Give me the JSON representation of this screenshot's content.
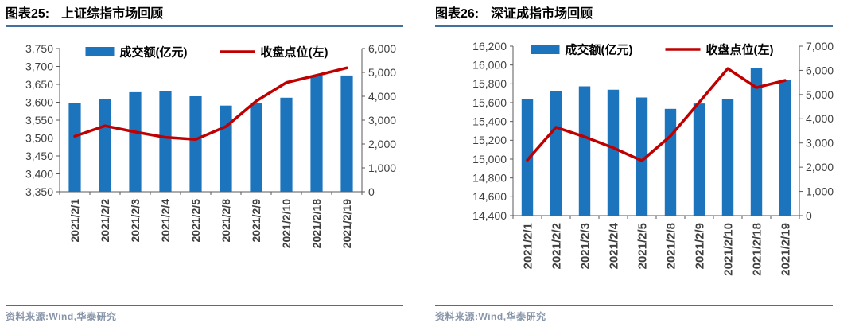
{
  "figures": [
    {
      "label": "图表25:",
      "title": "上证综指市场回顾",
      "source": "资料来源:Wind,华泰研究"
    },
    {
      "label": "图表26:",
      "title": "深证成指市场回顾",
      "source": "资料来源:Wind,华泰研究"
    }
  ],
  "colors": {
    "bar_blue": "#1B74BC",
    "line_red": "#C00000",
    "header_rule": "#41719C",
    "source_text": "#8795A9",
    "axis_text": "#404040",
    "axis_line": "#595959",
    "title_text": "#000000"
  },
  "chart_data": [
    {
      "type": "bar+line",
      "title": "上证综指市场回顾",
      "categories": [
        "2021/2/1",
        "2021/2/2",
        "2021/2/3",
        "2021/2/4",
        "2021/2/5",
        "2021/2/8",
        "2021/2/9",
        "2021/2/10",
        "2021/2/18",
        "2021/2/19"
      ],
      "series": [
        {
          "name": "成交额(亿元)",
          "type": "bar",
          "axis": "right",
          "color": "#1B74BC",
          "values": [
            3720,
            3870,
            4170,
            4210,
            4000,
            3610,
            3720,
            3940,
            4850,
            4870
          ]
        },
        {
          "name": "收盘点位(左)",
          "type": "line",
          "axis": "left",
          "color": "#C00000",
          "values": [
            3505,
            3534,
            3517,
            3502,
            3496,
            3532,
            3603,
            3655,
            3675,
            3696
          ]
        }
      ],
      "left_axis": {
        "min": 3350,
        "max": 3750,
        "step": 50
      },
      "right_axis": {
        "min": 0,
        "max": 6000,
        "step": 1000
      },
      "legend_position": "top-center",
      "grid": false
    },
    {
      "type": "bar+line",
      "title": "深证成指市场回顾",
      "categories": [
        "2021/2/1",
        "2021/2/2",
        "2021/2/3",
        "2021/2/4",
        "2021/2/5",
        "2021/2/8",
        "2021/2/9",
        "2021/2/10",
        "2021/2/18",
        "2021/2/19"
      ],
      "series": [
        {
          "name": "成交额(亿元)",
          "type": "bar",
          "axis": "right",
          "color": "#1B74BC",
          "values": [
            4800,
            5130,
            5340,
            5200,
            4880,
            4410,
            4630,
            4820,
            6080,
            5590
          ]
        },
        {
          "name": "收盘点位(左)",
          "type": "line",
          "axis": "left",
          "color": "#C00000",
          "values": [
            14990,
            15338,
            15237,
            15120,
            14983,
            15245,
            15603,
            15962,
            15760,
            15836
          ]
        }
      ],
      "left_axis": {
        "min": 14400,
        "max": 16200,
        "step": 200
      },
      "right_axis": {
        "min": 0,
        "max": 7000,
        "step": 1000
      },
      "legend_position": "top-center",
      "grid": false
    }
  ]
}
